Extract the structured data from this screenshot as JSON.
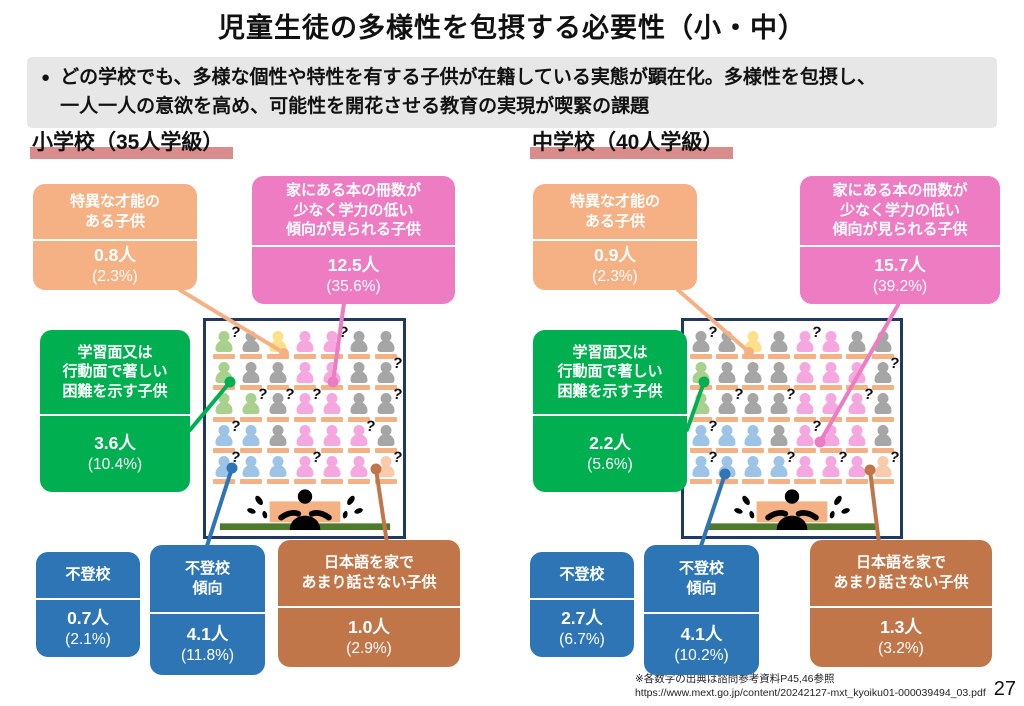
{
  "title": "児童生徒の多様性を包摂する必要性（小・中）",
  "summary": {
    "bullet": "●",
    "text": "どの学校でも、多様な個性や特性を有する子供が在籍している実態が顕在化。多様性を包摂し、\n一人一人の意欲を高め、可能性を開花させる教育の実現が喫緊の課題"
  },
  "colors": {
    "accent_rose": "#d98c8c",
    "summary_bg": "#e7e7e7",
    "classroom_border": "#1f3864",
    "desk_orange": "#f4b183",
    "board_green": "#4e7a2d",
    "teacher_black": "#000000",
    "callout_orange": "#f5b183",
    "callout_pink": "#ee7cc3",
    "callout_green": "#00b050",
    "callout_blue": "#2e75b6",
    "callout_brown": "#c1764a"
  },
  "seat_palette": {
    "G": "#a9d18e",
    "g": "#a6a6a6",
    "Y": "#ffe08a",
    "P": "#f5a8e0",
    "B": "#9dc3e6",
    "N": "#f8cbad"
  },
  "seat_legend": {
    "G": "learning-or-behavior-difficulty",
    "g": "other-student",
    "Y": "exceptional-talent",
    "P": "few-books-low-achievement",
    "B": "school-refusal",
    "N": "little-japanese-at-home"
  },
  "panels": [
    {
      "header": "小学校（35人学級）",
      "class_size": 35,
      "callouts": {
        "talent": {
          "label": "特異な才能の\nある子供",
          "count": "0.8人",
          "pct": "(2.3%)"
        },
        "books": {
          "label": "家にある本の冊数が\n少なく学力の低い\n傾向が見られる子供",
          "count": "12.5人",
          "pct": "(35.6%)"
        },
        "learning": {
          "label": "学習面又は\n行動面で著しい\n困難を示す子供",
          "count": "3.6人",
          "pct": "(10.4%)"
        },
        "futoko": {
          "label": "不登校",
          "count": "0.7人",
          "pct": "(2.1%)"
        },
        "futoko_tendency": {
          "label": "不登校\n傾向",
          "count": "4.1人",
          "pct": "(11.8%)"
        },
        "japanese": {
          "label": "日本語を家で\nあまり話さない子供",
          "count": "1.0人",
          "pct": "(2.9%)"
        }
      },
      "seats": [
        [
          "G?",
          "g",
          "Y",
          "P",
          "P?",
          "g",
          "g"
        ],
        [
          "G",
          "g",
          "g",
          "P",
          "P",
          "g",
          "g?"
        ],
        [
          "G",
          "G?",
          "g?",
          "P?",
          "P",
          "g",
          "g?"
        ],
        [
          "B?",
          "B",
          "g",
          "P",
          "P",
          "P?",
          "g"
        ],
        [
          "B?",
          "B",
          "B",
          "P?",
          "P",
          "P",
          "N?"
        ]
      ]
    },
    {
      "header": "中学校（40人学級）",
      "class_size": 40,
      "callouts": {
        "talent": {
          "label": "特異な才能の\nある子供",
          "count": "0.9人",
          "pct": "(2.3%)"
        },
        "books": {
          "label": "家にある本の冊数が\n少なく学力の低い\n傾向が見られる子供",
          "count": "15.7人",
          "pct": "(39.2%)"
        },
        "learning": {
          "label": "学習面又は\n行動面で著しい\n困難を示す子供",
          "count": "2.2人",
          "pct": "(5.6%)"
        },
        "futoko": {
          "label": "不登校",
          "count": "2.7人",
          "pct": "(6.7%)"
        },
        "futoko_tendency": {
          "label": "不登校\n傾向",
          "count": "4.1人",
          "pct": "(10.2%)"
        },
        "japanese": {
          "label": "日本語を家で\nあまり話さない子供",
          "count": "1.3人",
          "pct": "(3.2%)"
        }
      },
      "seats": [
        [
          "g?",
          "g",
          "Y",
          "g",
          "P?",
          "P",
          "g",
          "g"
        ],
        [
          "G",
          "g",
          "g",
          "g",
          "P",
          "P",
          "P",
          "g?"
        ],
        [
          "G",
          "g?",
          "g",
          "g?",
          "P",
          "P",
          "P?",
          "g"
        ],
        [
          "B?",
          "B",
          "B",
          "g",
          "P?",
          "P",
          "P",
          "g"
        ],
        [
          "B?",
          "B",
          "B",
          "B?",
          "P",
          "P?",
          "P",
          "N?"
        ]
      ]
    }
  ],
  "footer": {
    "note": "※各数字の出典は諮問参考資料P45,46参照",
    "url": "https://www.mext.go.jp/content/20242127-mxt_kyoiku01-000039494_03.pdf",
    "page": "27"
  }
}
